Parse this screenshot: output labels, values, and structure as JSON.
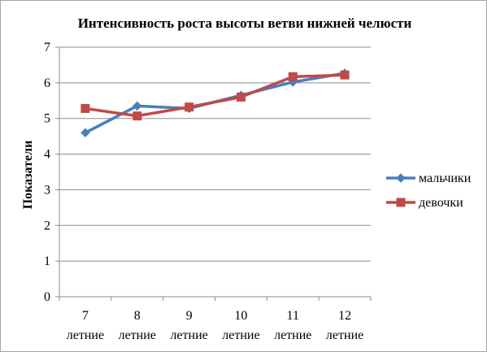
{
  "chart_data": {
    "type": "line",
    "title": "Интенсивность роста высоты ветви нижней челюсти",
    "ylabel": "Показатели",
    "xlabel": "",
    "ylim": [
      0,
      7
    ],
    "yticks": [
      "0",
      "1",
      "2",
      "3",
      "4",
      "5",
      "6",
      "7"
    ],
    "categories": [
      {
        "num": "7",
        "word": "летние"
      },
      {
        "num": "8",
        "word": "летние"
      },
      {
        "num": "9",
        "word": "летние"
      },
      {
        "num": "10",
        "word": "летние"
      },
      {
        "num": "11",
        "word": "летние"
      },
      {
        "num": "12",
        "word": "летние"
      }
    ],
    "grid": true,
    "legend_position": "right",
    "series": [
      {
        "name": "мальчики",
        "color": "#4a7ebb",
        "marker": "diamond",
        "values": [
          4.6,
          5.35,
          5.28,
          5.65,
          6.02,
          6.27
        ]
      },
      {
        "name": "девочки",
        "color": "#be4b48",
        "marker": "square",
        "values": [
          5.28,
          5.07,
          5.32,
          5.6,
          6.17,
          6.22
        ]
      }
    ]
  }
}
